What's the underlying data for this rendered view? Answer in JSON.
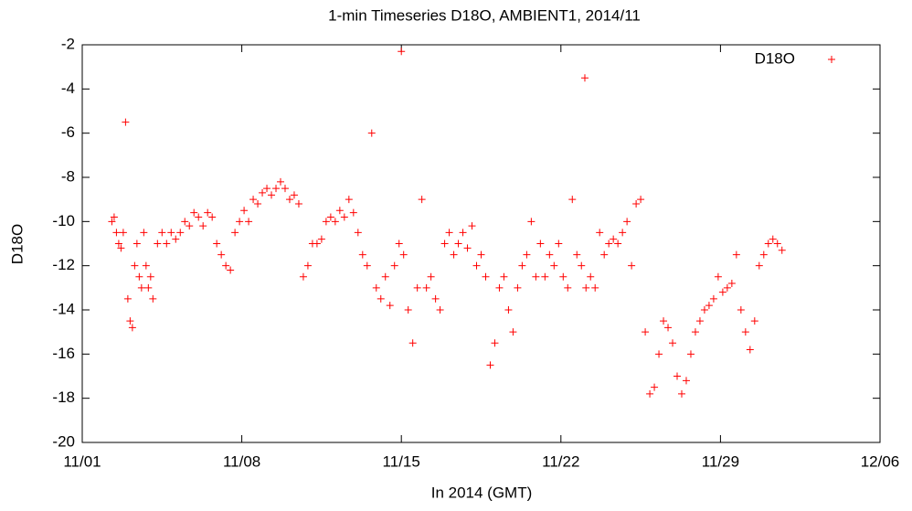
{
  "chart_data": {
    "type": "scatter",
    "title": "1-min Timeseries D18O, AMBIENT1, 2014/11",
    "xlabel": "In 2014 (GMT)",
    "ylabel": "D18O",
    "xlim": [
      0,
      35
    ],
    "xticks": [
      {
        "value": 0,
        "label": "11/01"
      },
      {
        "value": 7,
        "label": "11/08"
      },
      {
        "value": 14,
        "label": "11/15"
      },
      {
        "value": 21,
        "label": "11/22"
      },
      {
        "value": 28,
        "label": "11/29"
      },
      {
        "value": 35,
        "label": "12/06"
      }
    ],
    "ylim": [
      -20,
      -2
    ],
    "yticks": [
      -20,
      -18,
      -16,
      -14,
      -12,
      -10,
      -8,
      -6,
      -4,
      -2
    ],
    "legend": "upper right",
    "marker": "+",
    "series": [
      {
        "name": "D18O",
        "color": "#ff0000",
        "x": [
          1.3,
          1.4,
          1.5,
          1.6,
          1.7,
          1.8,
          1.9,
          2.0,
          2.1,
          2.2,
          2.3,
          2.4,
          2.5,
          2.6,
          2.7,
          2.8,
          2.9,
          3.0,
          3.1,
          3.3,
          3.5,
          3.7,
          3.9,
          4.1,
          4.3,
          4.5,
          4.7,
          4.9,
          5.1,
          5.3,
          5.5,
          5.7,
          5.9,
          6.1,
          6.3,
          6.5,
          6.7,
          6.9,
          7.1,
          7.3,
          7.5,
          7.7,
          7.9,
          8.1,
          8.3,
          8.5,
          8.7,
          8.9,
          9.1,
          9.3,
          9.5,
          9.7,
          9.9,
          10.1,
          10.3,
          10.5,
          10.7,
          10.9,
          11.1,
          11.3,
          11.5,
          11.7,
          11.9,
          12.1,
          12.3,
          12.5,
          12.7,
          12.9,
          13.1,
          13.3,
          13.5,
          13.7,
          13.9,
          14.0,
          14.1,
          14.3,
          14.5,
          14.7,
          14.9,
          15.1,
          15.3,
          15.5,
          15.7,
          15.9,
          16.1,
          16.3,
          16.5,
          16.7,
          16.9,
          17.1,
          17.3,
          17.5,
          17.7,
          17.9,
          18.1,
          18.3,
          18.5,
          18.7,
          18.9,
          19.1,
          19.3,
          19.5,
          19.7,
          19.9,
          20.1,
          20.3,
          20.5,
          20.7,
          20.9,
          21.1,
          21.3,
          21.5,
          21.7,
          21.9,
          22.05,
          22.1,
          22.3,
          22.5,
          22.7,
          22.9,
          23.1,
          23.3,
          23.5,
          23.7,
          23.9,
          24.1,
          24.3,
          24.5,
          24.7,
          24.9,
          25.1,
          25.3,
          25.5,
          25.7,
          25.9,
          26.1,
          26.3,
          26.5,
          26.7,
          26.9,
          27.1,
          27.3,
          27.5,
          27.7,
          27.9,
          28.1,
          28.3,
          28.5,
          28.7,
          28.9,
          29.1,
          29.3,
          29.5,
          29.7,
          29.9,
          30.1,
          30.3,
          30.5,
          30.7
        ],
        "values": [
          -10,
          -9.8,
          -10.5,
          -11,
          -11.2,
          -10.5,
          -5.5,
          -13.5,
          -14.5,
          -14.8,
          -12,
          -11,
          -12.5,
          -13,
          -10.5,
          -12,
          -13,
          -12.5,
          -13.5,
          -11,
          -10.5,
          -11,
          -10.5,
          -10.8,
          -10.5,
          -10,
          -10.2,
          -9.6,
          -9.8,
          -10.2,
          -9.6,
          -9.8,
          -11,
          -11.5,
          -12,
          -12.2,
          -10.5,
          -10,
          -9.5,
          -10,
          -9,
          -9.2,
          -8.7,
          -8.5,
          -8.8,
          -8.5,
          -8.2,
          -8.5,
          -9,
          -8.8,
          -9.2,
          -12.5,
          -12,
          -11,
          -11,
          -10.8,
          -10,
          -9.8,
          -10,
          -9.5,
          -9.8,
          -9,
          -9.6,
          -10.5,
          -11.5,
          -12,
          -6,
          -13,
          -13.5,
          -12.5,
          -13.8,
          -12,
          -11,
          -2.3,
          -11.5,
          -14,
          -15.5,
          -13,
          -9,
          -13,
          -12.5,
          -13.5,
          -14,
          -11,
          -10.5,
          -11.5,
          -11,
          -10.5,
          -11.2,
          -10.2,
          -12,
          -11.5,
          -12.5,
          -16.5,
          -15.5,
          -13,
          -12.5,
          -14,
          -15,
          -13,
          -12,
          -11.5,
          -10,
          -12.5,
          -11,
          -12.5,
          -11.5,
          -12,
          -11,
          -12.5,
          -13,
          -9,
          -11.5,
          -12,
          -3.5,
          -13,
          -12.5,
          -13,
          -10.5,
          -11.5,
          -11,
          -10.8,
          -11,
          -10.5,
          -10,
          -12,
          -9.2,
          -9,
          -15,
          -17.8,
          -17.5,
          -16,
          -14.5,
          -14.8,
          -15.5,
          -17,
          -17.8,
          -17.2,
          -16,
          -15,
          -14.5,
          -14,
          -13.8,
          -13.5,
          -12.5,
          -13.2,
          -13,
          -12.8,
          -11.5,
          -14,
          -15,
          -15.8,
          -14.5,
          -12,
          -11.5,
          -11,
          -10.8,
          -11,
          -11.3
        ]
      }
    ]
  }
}
